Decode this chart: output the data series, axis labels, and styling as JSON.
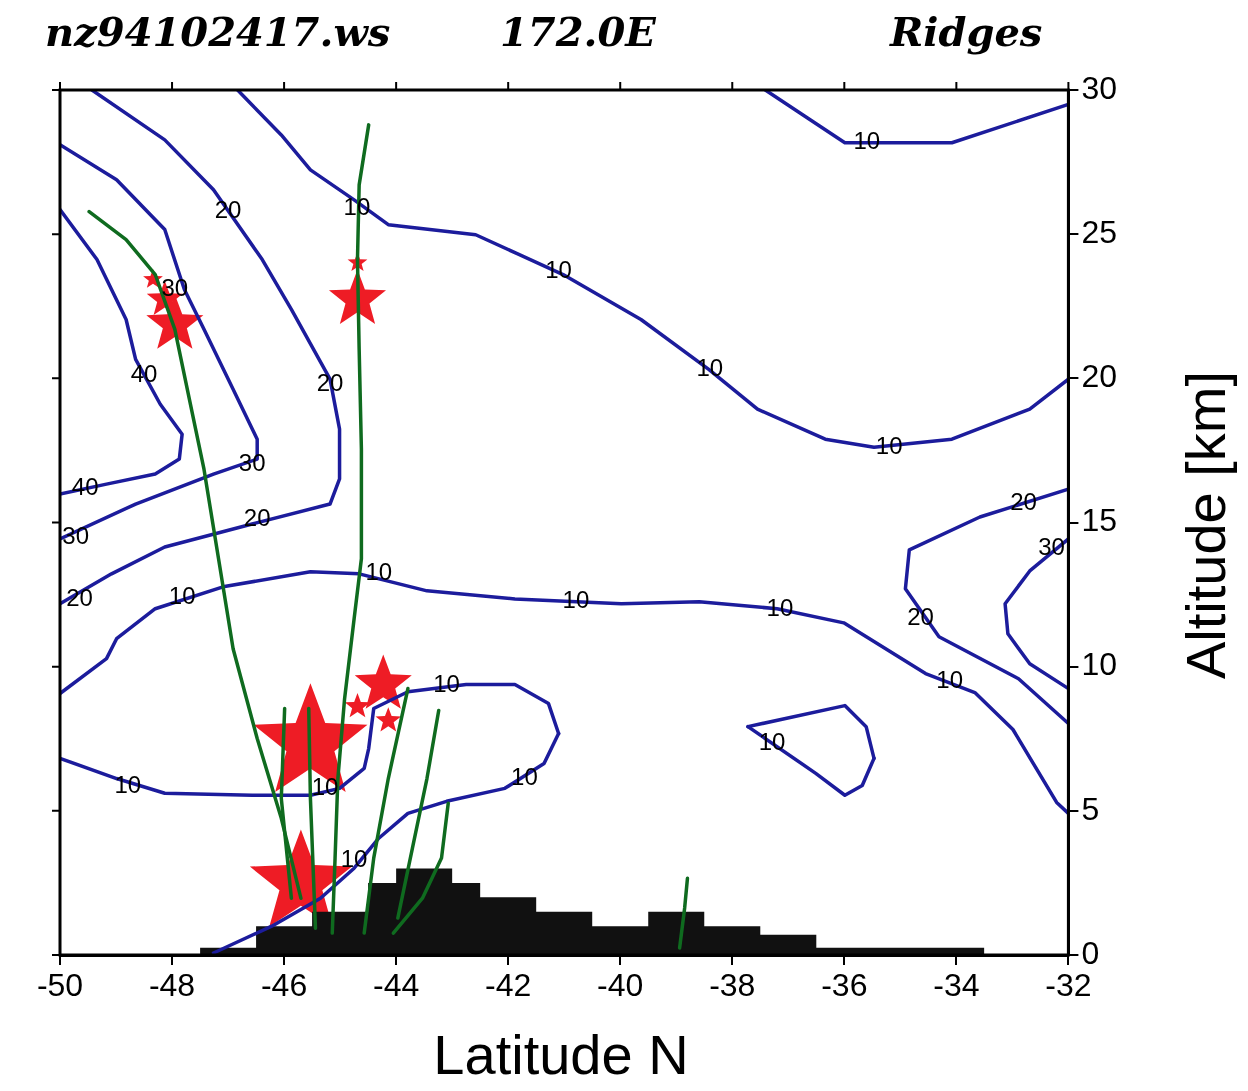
{
  "chart_data": {
    "type": "line",
    "title": "nz94102417.ws",
    "subtitle": "172.0E",
    "xlabel": "Latitude N",
    "ylabel": "Altitude [km]",
    "xlim": [
      -50,
      -32
    ],
    "ylim": [
      0,
      30
    ],
    "xticks": [
      -50,
      -48,
      -46,
      -44,
      -42,
      -40,
      -38,
      -36,
      -34,
      -32
    ],
    "yticks": [
      0,
      5,
      10,
      15,
      20,
      25,
      30
    ],
    "grid": false,
    "legend": false,
    "marker": "none",
    "series": [
      {
        "type": "area",
        "color": "#111111",
        "x": [
          -47.5,
          -47.5,
          -46.5,
          -46.5,
          -45.5,
          -45.5,
          -44.5,
          -44.5,
          -44,
          -44,
          -43,
          -43,
          -42.5,
          -42.5,
          -41.5,
          -41.5,
          -40.5,
          -40.5,
          -39.5,
          -39.5,
          -38.5,
          -38.5,
          -37.5,
          -37.5,
          -36.5,
          -36.5,
          -33.5,
          -33.5
        ],
        "values": [
          0,
          0.25,
          0.25,
          1.0,
          1.0,
          1.5,
          1.5,
          2.5,
          2.5,
          3.0,
          3.0,
          2.5,
          2.5,
          2.0,
          2.0,
          1.5,
          1.5,
          1.0,
          1.0,
          1.5,
          1.5,
          1.0,
          1.0,
          0.7,
          0.7,
          0.25,
          0.25,
          0
        ]
      },
      {
        "color": "#1c1c9c",
        "x": [
          -37.41,
          -35.99,
          -34.08,
          -32.0
        ],
        "values": [
          30.0,
          28.17,
          28.17,
          29.5
        ]
      },
      {
        "color": "#1c1c9c",
        "x": [
          -46.83,
          -46.05,
          -45.53,
          -44.75,
          -44.14,
          -42.58,
          -41.02,
          -39.63,
          -38.42,
          -37.55,
          -36.34,
          -35.47,
          -34.08,
          -32.69,
          -32.0
        ],
        "values": [
          30,
          28.44,
          27.23,
          26.19,
          25.33,
          24.98,
          23.6,
          22.04,
          20.31,
          18.93,
          17.89,
          17.61,
          17.89,
          18.93,
          19.97
        ]
      },
      {
        "color": "#1c1c9c",
        "x": [
          -49.43,
          -48.13,
          -47.26,
          -46.39,
          -45.87,
          -45.18,
          -45.01,
          -45.01,
          -45.18,
          -46.57,
          -48.13,
          -49.08,
          -50
        ],
        "values": [
          30,
          28.27,
          26.54,
          24.12,
          22.39,
          19.97,
          18.24,
          16.51,
          15.64,
          14.95,
          14.15,
          13.22,
          12.18
        ]
      },
      {
        "color": "#1c1c9c",
        "x": [
          -50,
          -48.99,
          -48.13,
          -47.78,
          -47.43,
          -46.91,
          -46.48,
          -46.48,
          -47.26,
          -48.65,
          -50
        ],
        "values": [
          28.1,
          26.89,
          25.16,
          23.08,
          21.7,
          19.62,
          17.89,
          17.2,
          16.68,
          15.64,
          14.43
        ]
      },
      {
        "color": "#1c1c9c",
        "x": [
          -50,
          -49.34,
          -48.82,
          -48.65,
          -48.21,
          -47.82,
          -47.87,
          -48.3,
          -49.17,
          -50
        ],
        "values": [
          25.85,
          24.12,
          22.04,
          20.66,
          19.1,
          18.06,
          17.2,
          16.68,
          16.33,
          15.99
        ]
      },
      {
        "color": "#1c1c9c",
        "x": [
          -50,
          -49.17,
          -48.99,
          -48.3,
          -47.09,
          -45.53,
          -44.66,
          -43.45,
          -41.88,
          -39.98,
          -38.59,
          -37.2,
          -36.01,
          -34.55,
          -33.67,
          -32.99,
          -32.21,
          -32.0
        ],
        "values": [
          9.07,
          10.28,
          10.97,
          12.01,
          12.77,
          13.29,
          13.22,
          12.63,
          12.35,
          12.18,
          12.25,
          12.01,
          11.52,
          9.76,
          9.1,
          7.82,
          5.29,
          4.91
        ]
      },
      {
        "color": "#1c1c9c",
        "x": [
          -32,
          -32.69,
          -33.13,
          -33.08,
          -32.69,
          -32
        ],
        "values": [
          14.43,
          13.32,
          12.18,
          11.14,
          10.1,
          9.24
        ]
      },
      {
        "color": "#1c1c9c",
        "x": [
          -32,
          -33.58,
          -34.84,
          -34.91,
          -34.31,
          -32.89,
          -32
        ],
        "values": [
          16.16,
          15.19,
          14.05,
          12.7,
          11.04,
          9.58,
          8.03
        ]
      },
      {
        "color": "#1c1c9c",
        "x": [
          -37.72,
          -35.99,
          -35.61,
          -35.47
        ],
        "values": [
          7.92,
          8.65,
          7.92,
          6.82
        ]
      },
      {
        "color": "#1c1c9c",
        "x": [
          -35.47,
          -35.68,
          -35.99,
          -36.51,
          -37.72
        ],
        "values": [
          6.82,
          5.88,
          5.54,
          6.3,
          7.92
        ]
      },
      {
        "color": "#1c1c9c",
        "x": [
          -50,
          -48.99,
          -48.13,
          -46.57,
          -45.53,
          -45.01,
          -44.57,
          -44.49,
          -44.4,
          -43.79,
          -42.75,
          -41.88,
          -41.28,
          -41.1
        ],
        "values": [
          6.82,
          6.12,
          5.61,
          5.54,
          5.54,
          5.78,
          6.47,
          7.16,
          8.55,
          9.13,
          9.38,
          9.38,
          8.72,
          7.68
        ]
      },
      {
        "color": "#1c1c9c",
        "x": [
          -41.1,
          -41.36,
          -42.06,
          -43.1,
          -43.79,
          -44.31,
          -44.75,
          -45.35,
          -46.22,
          -47.26
        ],
        "values": [
          7.68,
          6.64,
          5.78,
          5.33,
          4.91,
          4.05,
          3.01,
          1.97,
          1.0,
          0.07
        ]
      },
      {
        "color": "#0f6b1f",
        "x": [
          -49.48,
          -48.82,
          -48.3,
          -47.95,
          -47.69,
          -47.43,
          -47.17,
          -46.91,
          -46.48,
          -46.05,
          -45.7
        ],
        "values": [
          25.78,
          24.81,
          23.6,
          21.7,
          19.27,
          16.85,
          13.74,
          10.62,
          7.51,
          4.74,
          1.97
        ]
      },
      {
        "color": "#0f6b1f",
        "x": [
          -44.49,
          -44.66,
          -44.69,
          -44.66,
          -44.62,
          -44.62,
          -44.75,
          -44.92,
          -45.04,
          -45.09,
          -45.14
        ],
        "values": [
          28.79,
          26.71,
          24.12,
          21.0,
          17.54,
          13.74,
          11.66,
          8.89,
          6.12,
          3.36,
          0.76
        ]
      },
      {
        "color": "#0f6b1f",
        "x": [
          -45.56,
          -45.53,
          -45.44
        ],
        "values": [
          8.55,
          5.43,
          0.93
        ]
      },
      {
        "color": "#0f6b1f",
        "x": [
          -43.24,
          -43.45,
          -43.71,
          -43.97
        ],
        "values": [
          8.48,
          6.12,
          3.7,
          1.28
        ]
      },
      {
        "color": "#0f6b1f",
        "x": [
          -43.07,
          -43.19,
          -43.53,
          -44.05
        ],
        "values": [
          5.26,
          3.36,
          1.97,
          0.76
        ]
      },
      {
        "color": "#0f6b1f",
        "x": [
          -43.79,
          -44.14,
          -44.4,
          -44.57
        ],
        "values": [
          9.24,
          6.12,
          3.36,
          0.76
        ]
      },
      {
        "color": "#0f6b1f",
        "x": [
          -45.99,
          -46.05,
          -45.87
        ],
        "values": [
          8.55,
          5.43,
          1.97
        ]
      },
      {
        "color": "#0f6b1f",
        "x": [
          -38.8,
          -38.85,
          -38.94
        ],
        "values": [
          2.66,
          1.63,
          0.24
        ]
      },
      {
        "type": "bubble",
        "marker": "star",
        "color": "#ee1c25",
        "x": [
          -45.53,
          -45.7,
          -44.23,
          -44.69,
          -47.95,
          -48.13,
          -48.34,
          -44.69,
          -44.14,
          -44.69
        ],
        "values": [
          7.34,
          2.49,
          9.38,
          22.73,
          21.87,
          22.73,
          23.43,
          24.01,
          8.13,
          8.62
        ],
        "sizes": [
          1,
          0.8,
          0.25,
          0.25,
          0.25,
          0.1,
          0.03,
          0.03,
          0.05,
          0.05
        ]
      }
    ],
    "annotations": [
      "Ridges",
      {
        "text": "10",
        "x": -35.6,
        "y": 28.2
      },
      {
        "text": "10",
        "x": -44.7,
        "y": 25.9
      },
      {
        "text": "10",
        "x": -41.1,
        "y": 23.7
      },
      {
        "text": "10",
        "x": -38.4,
        "y": 20.3
      },
      {
        "text": "10",
        "x": -35.2,
        "y": 17.6
      },
      {
        "text": "20",
        "x": -47.0,
        "y": 25.8
      },
      {
        "text": "20",
        "x": -45.18,
        "y": 19.8
      },
      {
        "text": "20",
        "x": -46.48,
        "y": 15.1
      },
      {
        "text": "20",
        "x": -49.65,
        "y": 12.35
      },
      {
        "text": "30",
        "x": -47.95,
        "y": 23.1
      },
      {
        "text": "30",
        "x": -46.57,
        "y": 17.0
      },
      {
        "text": "30",
        "x": -49.72,
        "y": 14.5
      },
      {
        "text": "40",
        "x": -48.5,
        "y": 20.1
      },
      {
        "text": "40",
        "x": -49.55,
        "y": 16.2
      },
      {
        "text": "10",
        "x": -47.82,
        "y": 12.42
      },
      {
        "text": "10",
        "x": -44.31,
        "y": 13.22
      },
      {
        "text": "10",
        "x": -40.79,
        "y": 12.25
      },
      {
        "text": "10",
        "x": -37.15,
        "y": 12.0
      },
      {
        "text": "10",
        "x": -34.12,
        "y": 9.48
      },
      {
        "text": "30",
        "x": -32.3,
        "y": 14.1
      },
      {
        "text": "20",
        "x": -32.8,
        "y": 15.67
      },
      {
        "text": "20",
        "x": -34.64,
        "y": 11.66
      },
      {
        "text": "10",
        "x": -37.29,
        "y": 7.34
      },
      {
        "text": "10",
        "x": -48.79,
        "y": 5.85
      },
      {
        "text": "10",
        "x": -45.27,
        "y": 5.78
      },
      {
        "text": "10",
        "x": -43.1,
        "y": 9.34
      },
      {
        "text": "10",
        "x": -41.71,
        "y": 6.12
      },
      {
        "text": "10",
        "x": -44.75,
        "y": 3.29
      }
    ]
  }
}
